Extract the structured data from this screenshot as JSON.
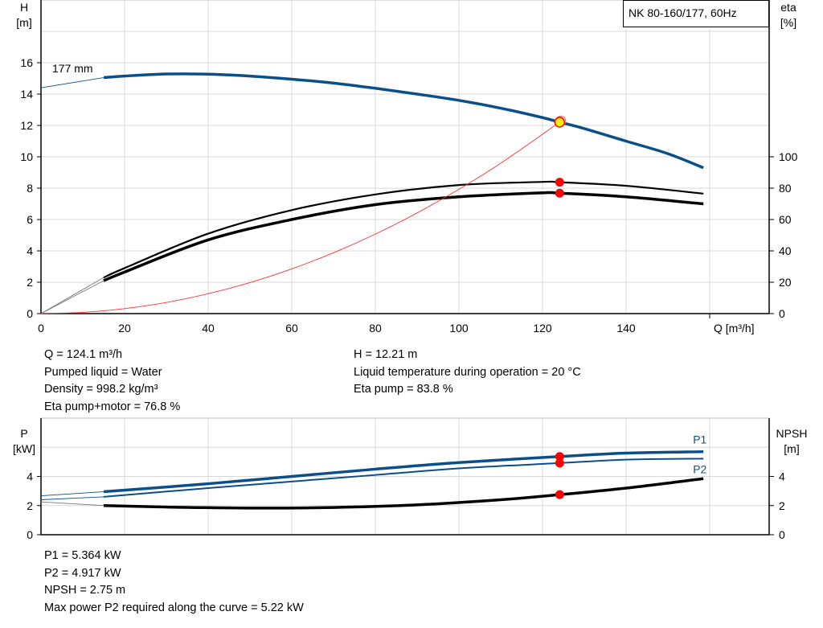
{
  "chart_data": [
    {
      "type": "line",
      "title": "NK 80-160/177, 60Hz",
      "xlabel": "Q [m³/h]",
      "ylabel": "H\n[m]",
      "y2label": "eta\n[%]",
      "xlim": [
        0,
        175
      ],
      "ylim": [
        0,
        20
      ],
      "y2lim": [
        0,
        200
      ],
      "xticks": [
        0,
        20,
        40,
        60,
        80,
        100,
        120,
        140
      ],
      "yticks": [
        0,
        2,
        4,
        6,
        8,
        10,
        12,
        14,
        16
      ],
      "y2ticks": [
        0,
        20,
        40,
        60,
        80,
        100
      ],
      "grid": true,
      "curve_label": "177 mm",
      "series": [
        {
          "id": "head",
          "axis": "y",
          "color": "#0b4f8a",
          "x": [
            0,
            15,
            20,
            30,
            40,
            50,
            60,
            70,
            80,
            90,
            100,
            110,
            120,
            124.1,
            130,
            140,
            150,
            158.5
          ],
          "values": [
            14.4,
            15.05,
            15.15,
            15.28,
            15.27,
            15.15,
            14.95,
            14.7,
            14.37,
            14.0,
            13.6,
            13.1,
            12.5,
            12.21,
            11.8,
            11.0,
            10.2,
            9.3
          ]
        },
        {
          "id": "eta-pump",
          "axis": "y2",
          "color": "#000000",
          "x": [
            0,
            15,
            20,
            40,
            60,
            80,
            100,
            120,
            124.1,
            140,
            158.5
          ],
          "values": [
            0,
            23,
            29,
            51,
            66,
            76,
            82,
            84,
            83.8,
            81.5,
            76.5
          ]
        },
        {
          "id": "eta-pump-motor",
          "axis": "y2",
          "color": "#000000",
          "x": [
            0,
            15,
            20,
            40,
            60,
            80,
            100,
            120,
            124.1,
            140,
            158.5
          ],
          "values": [
            0,
            21,
            26.5,
            47,
            60,
            69.5,
            74.5,
            77,
            76.8,
            74.5,
            70
          ]
        },
        {
          "id": "system-curve",
          "axis": "y",
          "color": "#ff3030",
          "x": [
            0,
            10,
            20,
            30,
            40,
            50,
            60,
            70,
            80,
            90,
            100,
            110,
            124.1
          ],
          "values": [
            0,
            0.08,
            0.32,
            0.71,
            1.27,
            1.98,
            2.85,
            3.88,
            5.07,
            6.42,
            7.93,
            9.59,
            12.21
          ]
        }
      ],
      "duty_point": {
        "Q": 124.1,
        "H": 12.21,
        "eta_pump": 83.8,
        "eta_pump_motor": 76.8
      }
    },
    {
      "type": "line",
      "ylabel": "P\n[kW]",
      "y2label": "NPSH\n[m]",
      "xlim": [
        0,
        175
      ],
      "ylim": [
        0,
        8
      ],
      "y2lim": [
        0,
        8
      ],
      "yticks": [
        0,
        2,
        4
      ],
      "y2ticks": [
        0,
        2,
        4
      ],
      "grid": true,
      "series": [
        {
          "id": "p1",
          "name": "P1",
          "axis": "y",
          "color": "#0b4f8a",
          "x": [
            0,
            15,
            40,
            60,
            80,
            100,
            124.1,
            140,
            158.5
          ],
          "values": [
            2.67,
            2.95,
            3.5,
            4.0,
            4.5,
            4.95,
            5.364,
            5.6,
            5.7
          ]
        },
        {
          "id": "p2",
          "name": "P2",
          "axis": "y",
          "color": "#0b4f8a",
          "x": [
            0,
            15,
            40,
            60,
            80,
            100,
            124.1,
            140,
            158.5
          ],
          "values": [
            2.4,
            2.6,
            3.2,
            3.65,
            4.1,
            4.55,
            4.917,
            5.15,
            5.22
          ]
        },
        {
          "id": "npsh",
          "axis": "y2",
          "color": "#000000",
          "x": [
            0,
            15,
            30,
            50,
            70,
            90,
            110,
            124.1,
            140,
            158.5
          ],
          "values": [
            2.25,
            2.0,
            1.9,
            1.83,
            1.87,
            2.05,
            2.4,
            2.75,
            3.2,
            3.85
          ]
        }
      ],
      "duty_point": {
        "Q": 124.1,
        "P1": 5.364,
        "P2": 4.917,
        "NPSH": 2.75
      }
    }
  ],
  "info_top": {
    "left": [
      "Q = 124.1 m³/h",
      "Pumped liquid = Water",
      "Density = 998.2 kg/m³",
      "Eta pump+motor = 76.8 %"
    ],
    "right": [
      "H = 12.21 m",
      "Liquid temperature during operation = 20 °C",
      "Eta pump = 83.8 %"
    ]
  },
  "info_bottom": [
    "P1 = 5.364 kW",
    "P2 = 4.917 kW",
    "NPSH = 2.75 m",
    "Max power P2 required along the curve = 5.22 kW"
  ]
}
